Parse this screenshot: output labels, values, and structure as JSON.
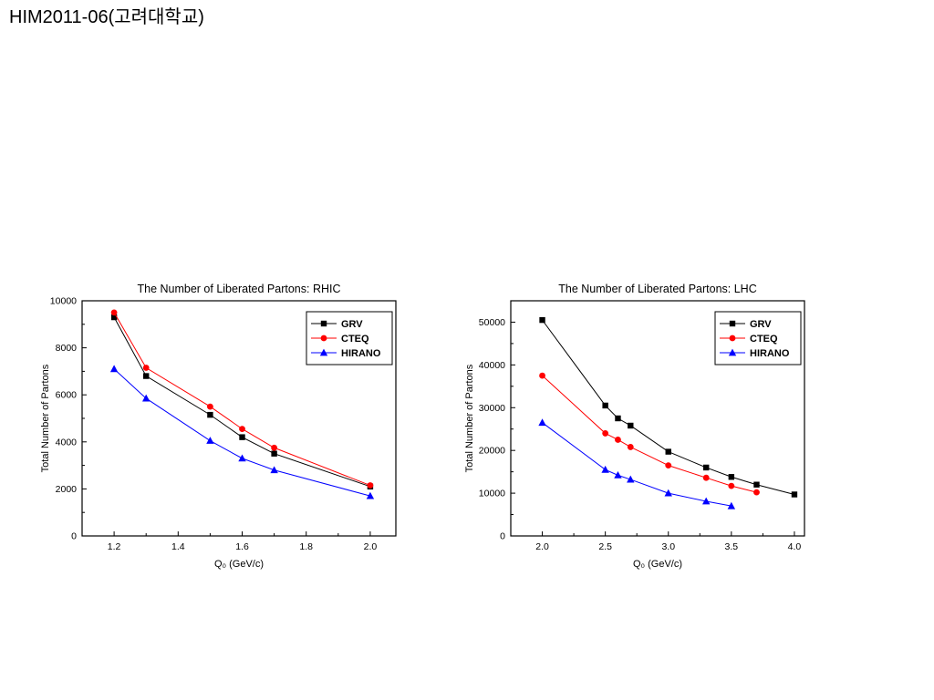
{
  "page": {
    "header": "HIM2011-06(고려대학교)"
  },
  "chart_data": [
    {
      "type": "line",
      "title": "The Number of Liberated Partons: RHIC",
      "xlabel": "Q₀ (GeV/c)",
      "ylabel": "Total Number of Partons",
      "xlim": [
        1.1,
        2.08
      ],
      "ylim": [
        0,
        10000
      ],
      "xticks": [
        1.2,
        1.4,
        1.6,
        1.8,
        2.0
      ],
      "xtick_labels": [
        "1.2",
        "1.4",
        "1.6",
        "1.8",
        "2.0"
      ],
      "yticks": [
        0,
        2000,
        4000,
        6000,
        8000,
        10000
      ],
      "ytick_labels": [
        "0",
        "2000",
        "4000",
        "6000",
        "8000",
        "10000"
      ],
      "grid": false,
      "legend_position": "top-right",
      "series": [
        {
          "name": "GRV",
          "color": "#000000",
          "marker": "square",
          "x": [
            1.2,
            1.3,
            1.5,
            1.6,
            1.7,
            2.0
          ],
          "y": [
            9300,
            6800,
            5150,
            4200,
            3500,
            2100
          ]
        },
        {
          "name": "CTEQ",
          "color": "#ff0000",
          "marker": "circle",
          "x": [
            1.2,
            1.3,
            1.5,
            1.6,
            1.7,
            2.0
          ],
          "y": [
            9500,
            7150,
            5500,
            4550,
            3750,
            2150
          ]
        },
        {
          "name": "HIRANO",
          "color": "#0000ff",
          "marker": "triangle",
          "x": [
            1.2,
            1.3,
            1.5,
            1.6,
            1.7,
            2.0
          ],
          "y": [
            7100,
            5850,
            4050,
            3300,
            2800,
            1700
          ]
        }
      ]
    },
    {
      "type": "line",
      "title": "The Number of Liberated Partons: LHC",
      "xlabel": "Q₀ (GeV/c)",
      "ylabel": "Total Number of Partons",
      "xlim": [
        1.75,
        4.08
      ],
      "ylim": [
        0,
        55000
      ],
      "xticks": [
        2.0,
        2.5,
        3.0,
        3.5,
        4.0
      ],
      "xtick_labels": [
        "2.0",
        "2.5",
        "3.0",
        "3.5",
        "4.0"
      ],
      "yticks": [
        0,
        10000,
        20000,
        30000,
        40000,
        50000
      ],
      "ytick_labels": [
        "0",
        "10000",
        "20000",
        "30000",
        "40000",
        "50000"
      ],
      "grid": false,
      "legend_position": "top-right",
      "series": [
        {
          "name": "GRV",
          "color": "#000000",
          "marker": "square",
          "x": [
            2.0,
            2.5,
            2.6,
            2.7,
            3.0,
            3.3,
            3.5,
            3.7,
            4.0
          ],
          "y": [
            50500,
            30500,
            27500,
            25800,
            19700,
            16000,
            13800,
            12000,
            9700
          ]
        },
        {
          "name": "CTEQ",
          "color": "#ff0000",
          "marker": "circle",
          "x": [
            2.0,
            2.5,
            2.6,
            2.7,
            3.0,
            3.3,
            3.5,
            3.7
          ],
          "y": [
            37500,
            24000,
            22500,
            20800,
            16500,
            13600,
            11700,
            10200
          ]
        },
        {
          "name": "HIRANO",
          "color": "#0000ff",
          "marker": "triangle",
          "x": [
            2.0,
            2.5,
            2.6,
            2.7,
            3.0,
            3.3,
            3.5
          ],
          "y": [
            26500,
            15500,
            14200,
            13200,
            10000,
            8100,
            7000
          ]
        }
      ]
    }
  ]
}
